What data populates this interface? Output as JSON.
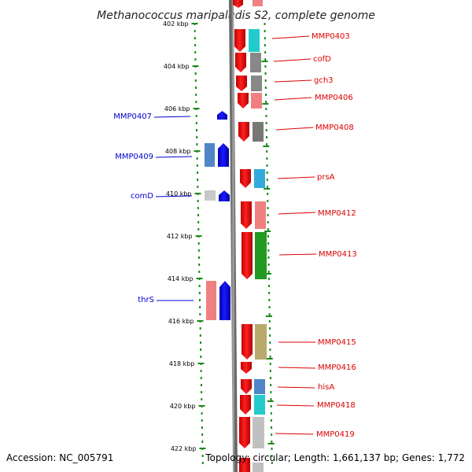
{
  "title": "Methanococcus maripaludis S2, complete genome",
  "accession": "Accession: NC_005791",
  "topology": "Topology: circular; Length: 1,661,137 bp; Genes: 1,772",
  "colors": {
    "label_reverse": "#0000cc",
    "label_forward": "#dd0000",
    "ruler_tick": "#1a8a1a",
    "backbone": "#888888"
  },
  "ruler_labels": [
    "402 kbp",
    "404 kbp",
    "406 kbp",
    "408 kbp",
    "410 kbp",
    "412 kbp",
    "414 kbp",
    "416 kbp",
    "418 kbp",
    "420 kbp",
    "422 kbp"
  ],
  "reverse_genes": [
    {
      "name": "MMP0407",
      "cog_color": "none"
    },
    {
      "name": "MMP0409",
      "cog_color": "#4f86c6"
    },
    {
      "name": "comD",
      "cog_color": "#c8c8c8"
    },
    {
      "name": "thrS",
      "cog_color": "#f08080"
    }
  ],
  "forward_genes": [
    {
      "name": "MMP0403",
      "cog_color": "#22cccc"
    },
    {
      "name": "cofD",
      "cog_color": "#888888"
    },
    {
      "name": "gch3",
      "cog_color": "#888888"
    },
    {
      "name": "MMP0406",
      "cog_color": "#f08080"
    },
    {
      "name": "MMP0408",
      "cog_color": "#777777"
    },
    {
      "name": "prsA",
      "cog_color": "#33aadd"
    },
    {
      "name": "MMP0412",
      "cog_color": "#f08080"
    },
    {
      "name": "MMP0413",
      "cog_color": "#229922"
    },
    {
      "name": "MMP0415",
      "cog_color": "#b8aa6a"
    },
    {
      "name": "MMP0416",
      "cog_color": "none"
    },
    {
      "name": "hisA",
      "cog_color": "#4f86c6"
    },
    {
      "name": "MMP0418",
      "cog_color": "#22cccc"
    },
    {
      "name": "MMP0419",
      "cog_color": "#c0c0c0"
    }
  ]
}
